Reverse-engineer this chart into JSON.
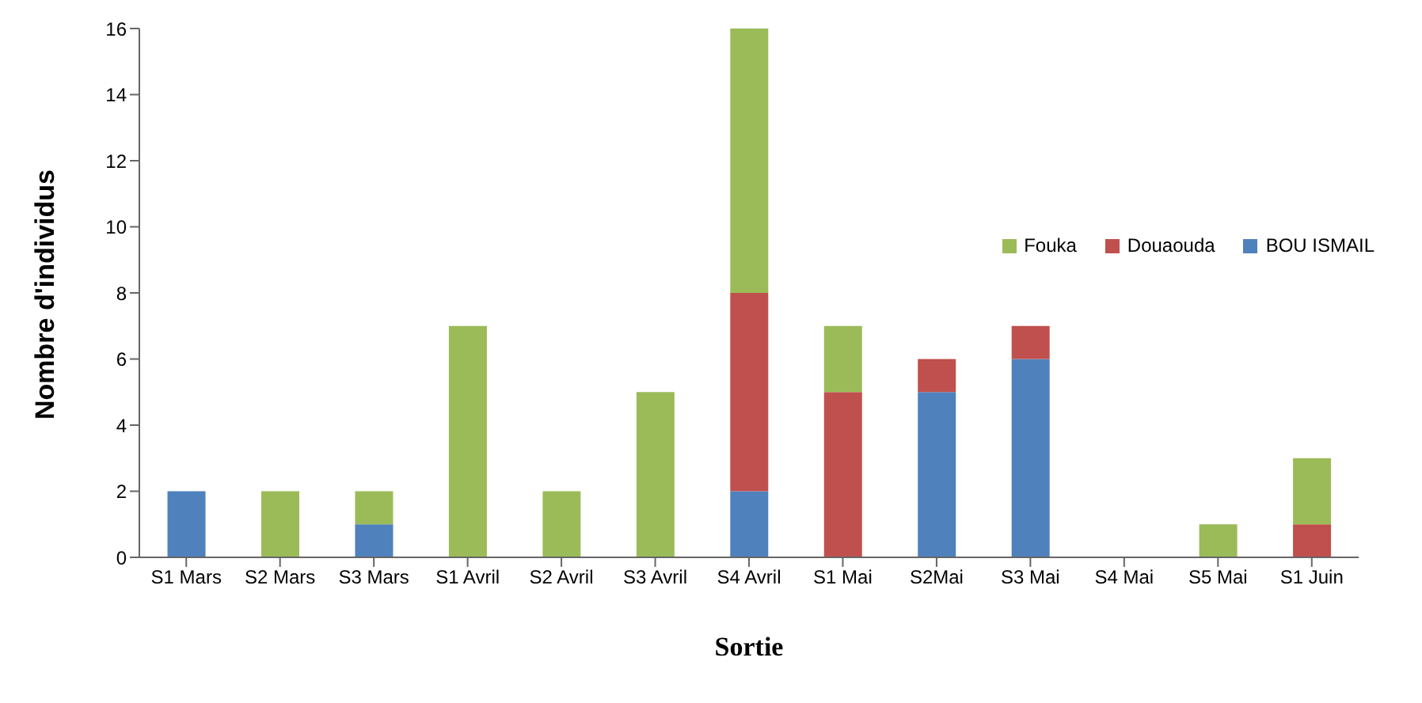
{
  "chart_data": {
    "type": "bar",
    "stacked": true,
    "xlabel": "Sortie",
    "ylabel": "Nombre d'individus",
    "categories": [
      "S1 Mars",
      "S2 Mars",
      "S3 Mars",
      "S1 Avril",
      "S2 Avril",
      "S3 Avril",
      "S4 Avril",
      "S1 Mai",
      "S2Mai",
      "S3 Mai",
      "S4 Mai",
      "S5 Mai",
      "S1 Juin"
    ],
    "series": [
      {
        "name": "BOU ISMAIL",
        "color": "#4f81bd",
        "values": [
          2,
          0,
          1,
          0,
          0,
          0,
          2,
          0,
          5,
          6,
          0,
          0,
          0
        ]
      },
      {
        "name": "Douaouda",
        "color": "#c0504d",
        "values": [
          0,
          0,
          0,
          0,
          0,
          0,
          6,
          5,
          1,
          1,
          0,
          0,
          1
        ]
      },
      {
        "name": "Fouka",
        "color": "#9bbb59",
        "values": [
          0,
          2,
          1,
          7,
          2,
          5,
          8,
          2,
          0,
          0,
          0,
          1,
          2
        ]
      }
    ],
    "ylim": [
      0,
      16
    ],
    "yticks": [
      0,
      2,
      4,
      6,
      8,
      10,
      12,
      14,
      16
    ],
    "grid": false,
    "legend": "right"
  }
}
